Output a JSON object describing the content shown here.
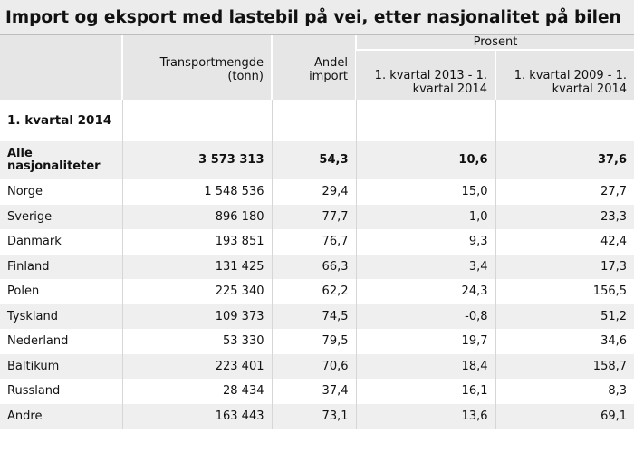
{
  "title": "Import og eksport med lastebil på vei, etter nasjonalitet på bilen",
  "header": {
    "transport": "Transportmengde (tonn)",
    "andel": "Andel import",
    "group": "Prosent",
    "period1": "1. kvartal 2013 - 1. kvartal 2014",
    "period2": "1. kvartal 2009 - 1. kvartal 2014"
  },
  "section": "1. kvartal 2014",
  "rows": [
    [
      "Alle nasjonaliteter",
      "3 573 313",
      "54,3",
      "10,6",
      "37,6"
    ],
    [
      "Norge",
      "1 548 536",
      "29,4",
      "15,0",
      "27,7"
    ],
    [
      "Sverige",
      "896 180",
      "77,7",
      "1,0",
      "23,3"
    ],
    [
      "Danmark",
      "193 851",
      "76,7",
      "9,3",
      "42,4"
    ],
    [
      "Finland",
      "131 425",
      "66,3",
      "3,4",
      "17,3"
    ],
    [
      "Polen",
      "225 340",
      "62,2",
      "24,3",
      "156,5"
    ],
    [
      "Tyskland",
      "109 373",
      "74,5",
      "-0,8",
      "51,2"
    ],
    [
      "Nederland",
      "53 330",
      "79,5",
      "19,7",
      "34,6"
    ],
    [
      "Baltikum",
      "223 401",
      "70,6",
      "18,4",
      "158,7"
    ],
    [
      "Russland",
      "28 434",
      "37,4",
      "16,1",
      "8,3"
    ],
    [
      "Andre",
      "163 443",
      "73,1",
      "13,6",
      "69,1"
    ]
  ]
}
